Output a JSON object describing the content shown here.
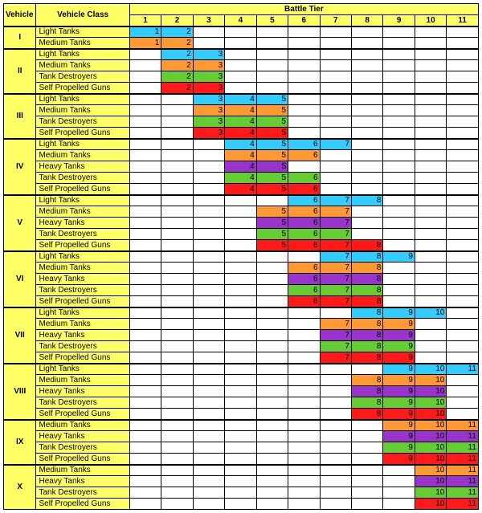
{
  "colors": {
    "header_bg": "#ffff66",
    "light": "#33ccff",
    "medium": "#ff9933",
    "heavy": "#9933cc",
    "td": "#66cc33",
    "spg": "#ff1a1a"
  },
  "headers": {
    "vehicle_tier": "Vehicle Tier",
    "vehicle_class": "Vehicle Class",
    "battle_tier": "Battle Tier",
    "bt_cols": [
      "1",
      "2",
      "3",
      "4",
      "5",
      "6",
      "7",
      "8",
      "9",
      "10",
      "11"
    ]
  },
  "class_names": {
    "light": "Light Tanks",
    "medium": "Medium Tanks",
    "heavy": "Heavy Tanks",
    "td": "Tank Destroyers",
    "spg": "Self Propelled Guns"
  },
  "tiers": [
    {
      "tier": "I",
      "rows": [
        {
          "cls": "light",
          "span": [
            1,
            2
          ]
        },
        {
          "cls": "medium",
          "span": [
            1,
            2
          ]
        }
      ]
    },
    {
      "tier": "II",
      "rows": [
        {
          "cls": "light",
          "span": [
            2,
            3
          ]
        },
        {
          "cls": "medium",
          "span": [
            2,
            3
          ]
        },
        {
          "cls": "td",
          "span": [
            2,
            3
          ]
        },
        {
          "cls": "spg",
          "span": [
            2,
            3
          ]
        }
      ]
    },
    {
      "tier": "III",
      "rows": [
        {
          "cls": "light",
          "span": [
            3,
            5
          ]
        },
        {
          "cls": "medium",
          "span": [
            3,
            5
          ]
        },
        {
          "cls": "td",
          "span": [
            3,
            5
          ]
        },
        {
          "cls": "spg",
          "span": [
            3,
            5
          ]
        }
      ]
    },
    {
      "tier": "IV",
      "rows": [
        {
          "cls": "light",
          "span": [
            4,
            7
          ]
        },
        {
          "cls": "medium",
          "span": [
            4,
            6
          ]
        },
        {
          "cls": "heavy",
          "span": [
            4,
            5
          ]
        },
        {
          "cls": "td",
          "span": [
            4,
            6
          ]
        },
        {
          "cls": "spg",
          "span": [
            4,
            6
          ]
        }
      ]
    },
    {
      "tier": "V",
      "rows": [
        {
          "cls": "light",
          "span": [
            6,
            8
          ]
        },
        {
          "cls": "medium",
          "span": [
            5,
            7
          ]
        },
        {
          "cls": "heavy",
          "span": [
            5,
            7
          ]
        },
        {
          "cls": "td",
          "span": [
            5,
            7
          ]
        },
        {
          "cls": "spg",
          "span": [
            5,
            8
          ]
        }
      ]
    },
    {
      "tier": "VI",
      "rows": [
        {
          "cls": "light",
          "span": [
            7,
            9
          ]
        },
        {
          "cls": "medium",
          "span": [
            6,
            8
          ]
        },
        {
          "cls": "heavy",
          "span": [
            6,
            8
          ]
        },
        {
          "cls": "td",
          "span": [
            6,
            8
          ]
        },
        {
          "cls": "spg",
          "span": [
            6,
            8
          ]
        }
      ]
    },
    {
      "tier": "VII",
      "rows": [
        {
          "cls": "light",
          "span": [
            8,
            10
          ]
        },
        {
          "cls": "medium",
          "span": [
            7,
            9
          ]
        },
        {
          "cls": "heavy",
          "span": [
            7,
            9
          ]
        },
        {
          "cls": "td",
          "span": [
            7,
            9
          ]
        },
        {
          "cls": "spg",
          "span": [
            7,
            9
          ]
        }
      ]
    },
    {
      "tier": "VIII",
      "rows": [
        {
          "cls": "light",
          "span": [
            9,
            11
          ]
        },
        {
          "cls": "medium",
          "span": [
            8,
            10
          ]
        },
        {
          "cls": "heavy",
          "span": [
            8,
            10
          ]
        },
        {
          "cls": "td",
          "span": [
            8,
            10
          ]
        },
        {
          "cls": "spg",
          "span": [
            8,
            10
          ]
        }
      ]
    },
    {
      "tier": "IX",
      "rows": [
        {
          "cls": "medium",
          "span": [
            9,
            11
          ]
        },
        {
          "cls": "heavy",
          "span": [
            9,
            11
          ]
        },
        {
          "cls": "td",
          "span": [
            9,
            11
          ]
        },
        {
          "cls": "spg",
          "span": [
            9,
            11
          ]
        }
      ]
    },
    {
      "tier": "X",
      "rows": [
        {
          "cls": "medium",
          "span": [
            10,
            11
          ]
        },
        {
          "cls": "heavy",
          "span": [
            10,
            11
          ]
        },
        {
          "cls": "td",
          "span": [
            10,
            11
          ]
        },
        {
          "cls": "spg",
          "span": [
            10,
            11
          ]
        }
      ]
    }
  ]
}
